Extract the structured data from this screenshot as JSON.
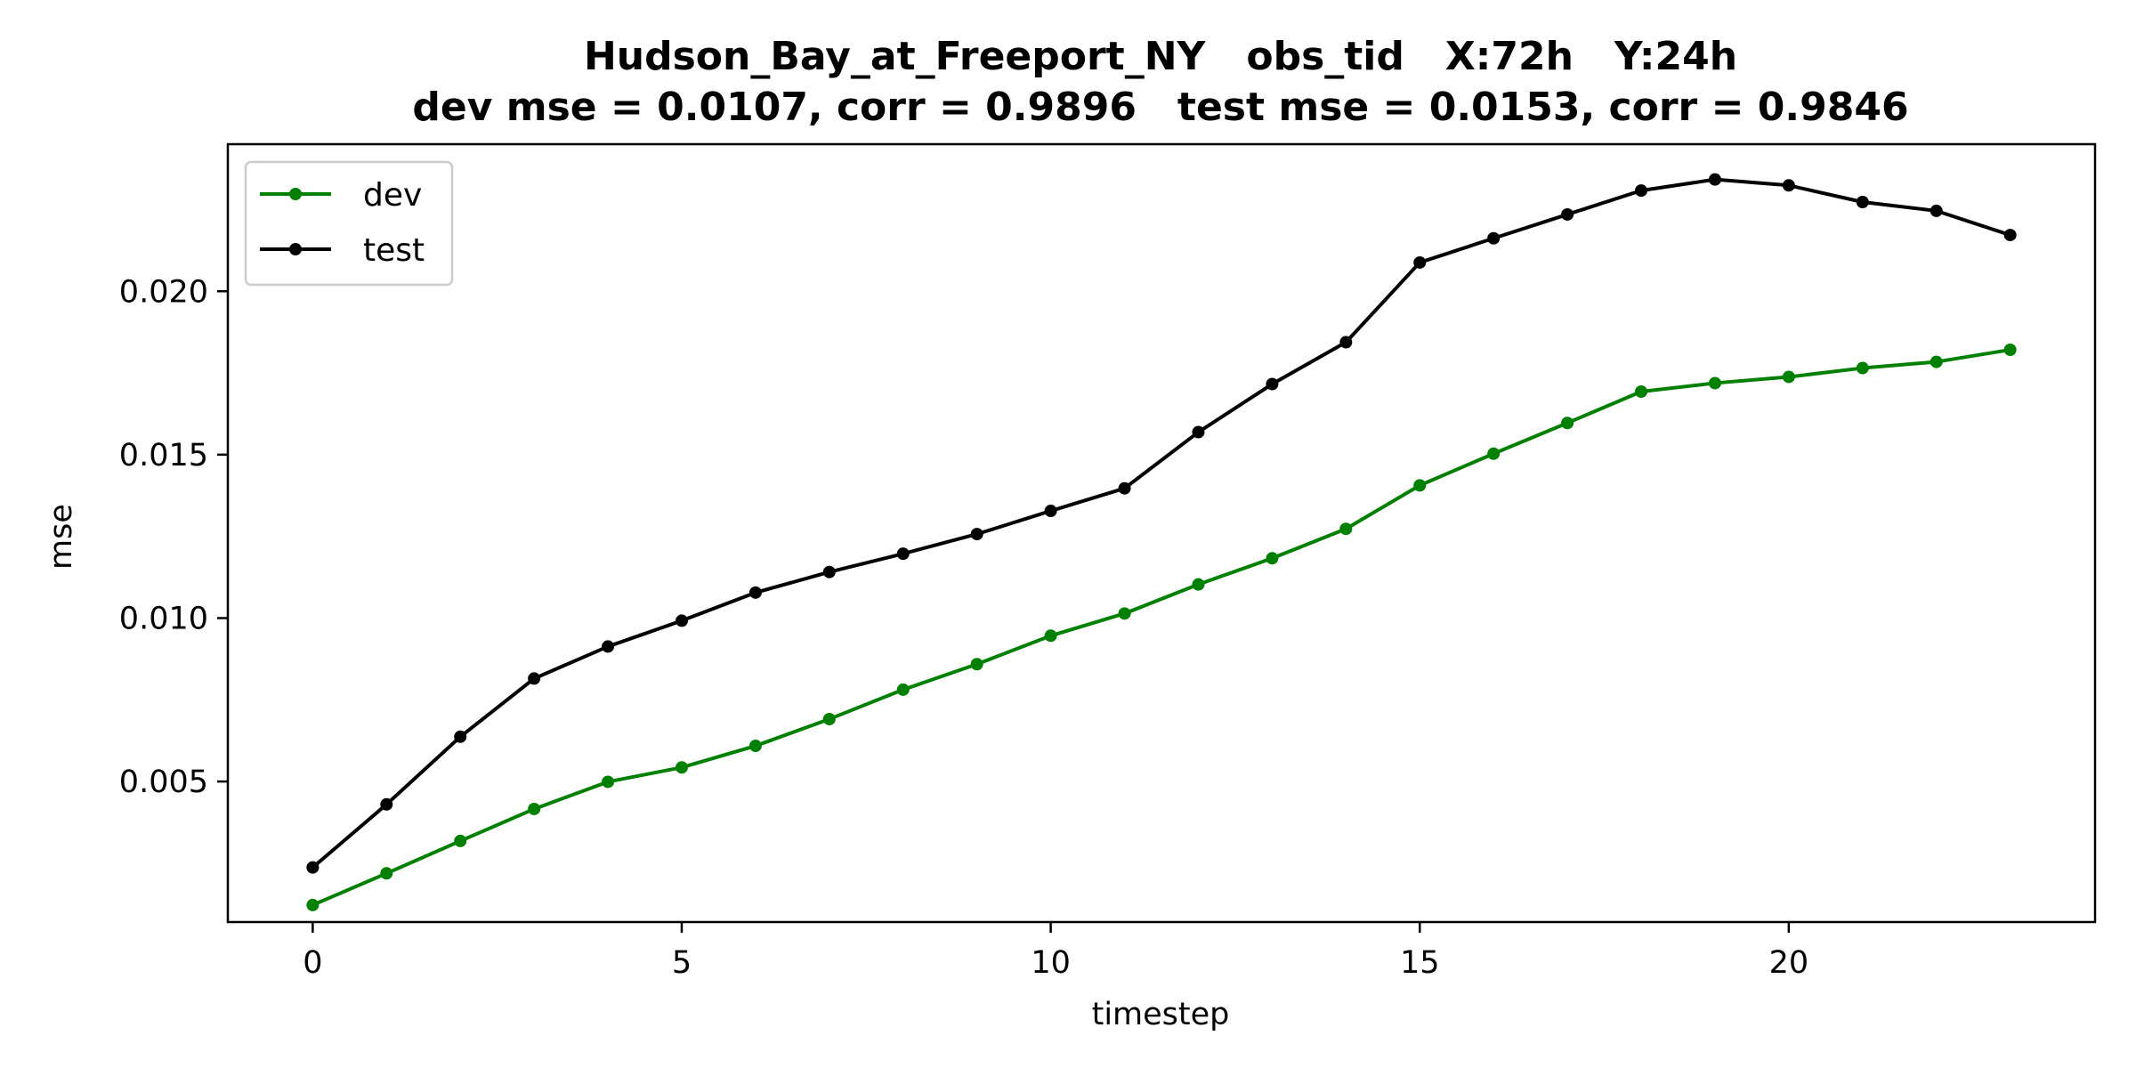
{
  "chart_data": {
    "type": "line",
    "title_line1": "Hudson_Bay_at_Freeport_NY   obs_tid   X:72h   Y:24h",
    "title_line2": "dev mse = 0.0107, corr = 0.9896   test mse = 0.0153, corr = 0.9846",
    "xlabel": "timestep",
    "ylabel": "mse",
    "x": [
      0,
      1,
      2,
      3,
      4,
      5,
      6,
      7,
      8,
      9,
      10,
      11,
      12,
      13,
      14,
      15,
      16,
      17,
      18,
      19,
      20,
      21,
      22,
      23
    ],
    "xlim": [
      -1.15,
      24.15
    ],
    "ylim": [
      0.0007,
      0.0245
    ],
    "xticks": [
      0,
      5,
      10,
      15,
      20
    ],
    "xtick_labels": [
      "0",
      "5",
      "10",
      "15",
      "20"
    ],
    "yticks": [
      0.005,
      0.01,
      0.015,
      0.02
    ],
    "ytick_labels": [
      "0.005",
      "0.010",
      "0.015",
      "0.020"
    ],
    "grid": false,
    "legend_position": "upper-left",
    "series": [
      {
        "name": "dev",
        "color": "#008000",
        "values": [
          0.00122,
          0.00219,
          0.00318,
          0.00416,
          0.00499,
          0.00543,
          0.00609,
          0.00691,
          0.00781,
          0.00859,
          0.00946,
          0.01014,
          0.01103,
          0.01183,
          0.01273,
          0.01406,
          0.01503,
          0.01597,
          0.01693,
          0.01719,
          0.01738,
          0.01765,
          0.01784,
          0.01821
        ]
      },
      {
        "name": "test",
        "color": "#000000",
        "values": [
          0.00237,
          0.0043,
          0.00637,
          0.00815,
          0.00913,
          0.00992,
          0.01078,
          0.01141,
          0.01197,
          0.01257,
          0.01328,
          0.01397,
          0.01569,
          0.01716,
          0.01844,
          0.02088,
          0.02162,
          0.02235,
          0.02308,
          0.02342,
          0.02324,
          0.02273,
          0.02246,
          0.02172
        ]
      }
    ]
  }
}
